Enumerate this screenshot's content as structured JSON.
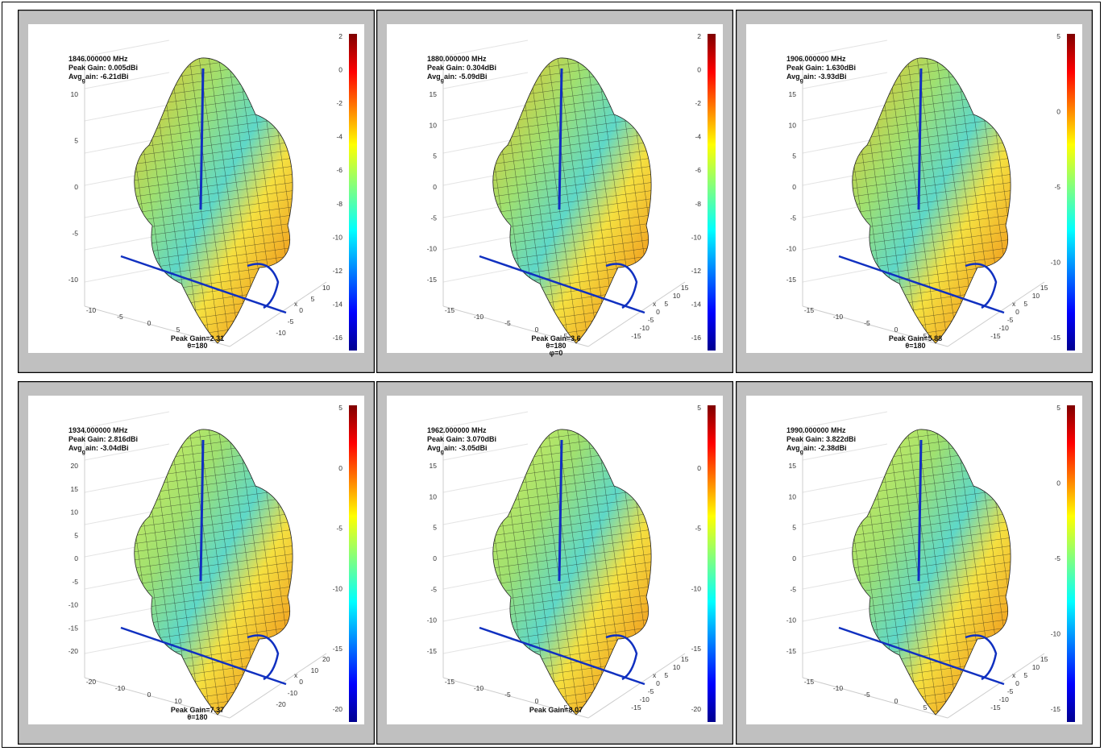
{
  "panels": [
    {
      "freq": "1846.000000 MHz",
      "peak_gain": "Peak Gain: 0.005dBi",
      "avg_gain": {
        "main": "Avg",
        "sub": "g",
        "rest": "ain: -6.21dBi"
      },
      "z_ticks": [
        10,
        5,
        0,
        -5,
        -10
      ],
      "colorbar_ticks": [
        2,
        0,
        -2,
        -4,
        -6,
        -8,
        -10,
        -12,
        -14,
        -16
      ],
      "x_ticks": [
        -10,
        -5,
        0,
        5
      ],
      "y_ticks": [
        10,
        5,
        0,
        -5,
        -10
      ],
      "axis_label": "x",
      "annotation": [
        "Peak Gain=2.31",
        "θ=180"
      ]
    },
    {
      "freq": "1880.000000 MHz",
      "peak_gain": "Peak Gain: 0.304dBi",
      "avg_gain": {
        "main": "Avg",
        "sub": "g",
        "rest": "ain: -5.09dBi"
      },
      "z_ticks": [
        15,
        10,
        5,
        0,
        -5,
        -10,
        -15
      ],
      "colorbar_ticks": [
        2,
        0,
        -2,
        -4,
        -6,
        -8,
        -10,
        -12,
        -14,
        -16
      ],
      "x_ticks": [
        -15,
        -10,
        -5,
        0,
        5
      ],
      "y_ticks": [
        15,
        10,
        5,
        0,
        -5,
        -10,
        -15
      ],
      "axis_label": "x",
      "annotation": [
        "Peak Gain=3.6",
        "θ=180",
        "φ=0"
      ]
    },
    {
      "freq": "1906.000000 MHz",
      "peak_gain": "Peak Gain: 1.630dBi",
      "avg_gain": {
        "main": "Avg",
        "sub": "g",
        "rest": "ain: -3.93dBi"
      },
      "z_ticks": [
        15,
        10,
        5,
        0,
        -5,
        -10,
        -15
      ],
      "colorbar_ticks": [
        5,
        0,
        -5,
        -10,
        -15
      ],
      "x_ticks": [
        -15,
        -10,
        -5,
        0,
        5
      ],
      "y_ticks": [
        15,
        10,
        5,
        0,
        -5,
        -10,
        -15
      ],
      "axis_label": "x",
      "annotation": [
        "Peak Gain=5.88",
        "θ=180"
      ]
    },
    {
      "freq": "1934.000000 MHz",
      "peak_gain": "Peak Gain: 2.816dBi",
      "avg_gain": {
        "main": "Avg",
        "sub": "g",
        "rest": "ain: -3.04dBi"
      },
      "z_ticks": [
        20,
        15,
        10,
        5,
        0,
        -5,
        -10,
        -15,
        -20
      ],
      "colorbar_ticks": [
        5,
        0,
        -5,
        -10,
        -15,
        -20
      ],
      "x_ticks": [
        -20,
        -10,
        0,
        10
      ],
      "y_ticks": [
        20,
        10,
        0,
        -10,
        -20
      ],
      "axis_label": "x",
      "annotation": [
        "Peak Gain=7.37",
        "θ=180"
      ]
    },
    {
      "freq": "1962.000000 MHz",
      "peak_gain": "Peak Gain: 3.070dBi",
      "avg_gain": {
        "main": "Avg",
        "sub": "g",
        "rest": "ain: -3.05dBi"
      },
      "z_ticks": [
        15,
        10,
        5,
        0,
        -5,
        -10,
        -15
      ],
      "colorbar_ticks": [
        5,
        0,
        -5,
        -10,
        -15,
        -20
      ],
      "x_ticks": [
        -15,
        -10,
        -5,
        0,
        5
      ],
      "y_ticks": [
        15,
        10,
        5,
        0,
        -5,
        -10,
        -15
      ],
      "axis_label": "x",
      "annotation": [
        "Peak Gain=8.07"
      ]
    },
    {
      "freq": "1990.000000 MHz",
      "peak_gain": "Peak Gain: 3.822dBi",
      "avg_gain": {
        "main": "Avg",
        "sub": "g",
        "rest": "ain: -2.38dBi"
      },
      "z_ticks": [
        15,
        10,
        5,
        0,
        -5,
        -10,
        -15
      ],
      "colorbar_ticks": [
        5,
        0,
        -5,
        -10,
        -15
      ],
      "x_ticks": [
        -15,
        -10,
        -5,
        0,
        5
      ],
      "y_ticks": [
        15,
        10,
        5,
        0,
        -5,
        -10,
        -15
      ],
      "axis_label": "x",
      "annotation": []
    }
  ]
}
